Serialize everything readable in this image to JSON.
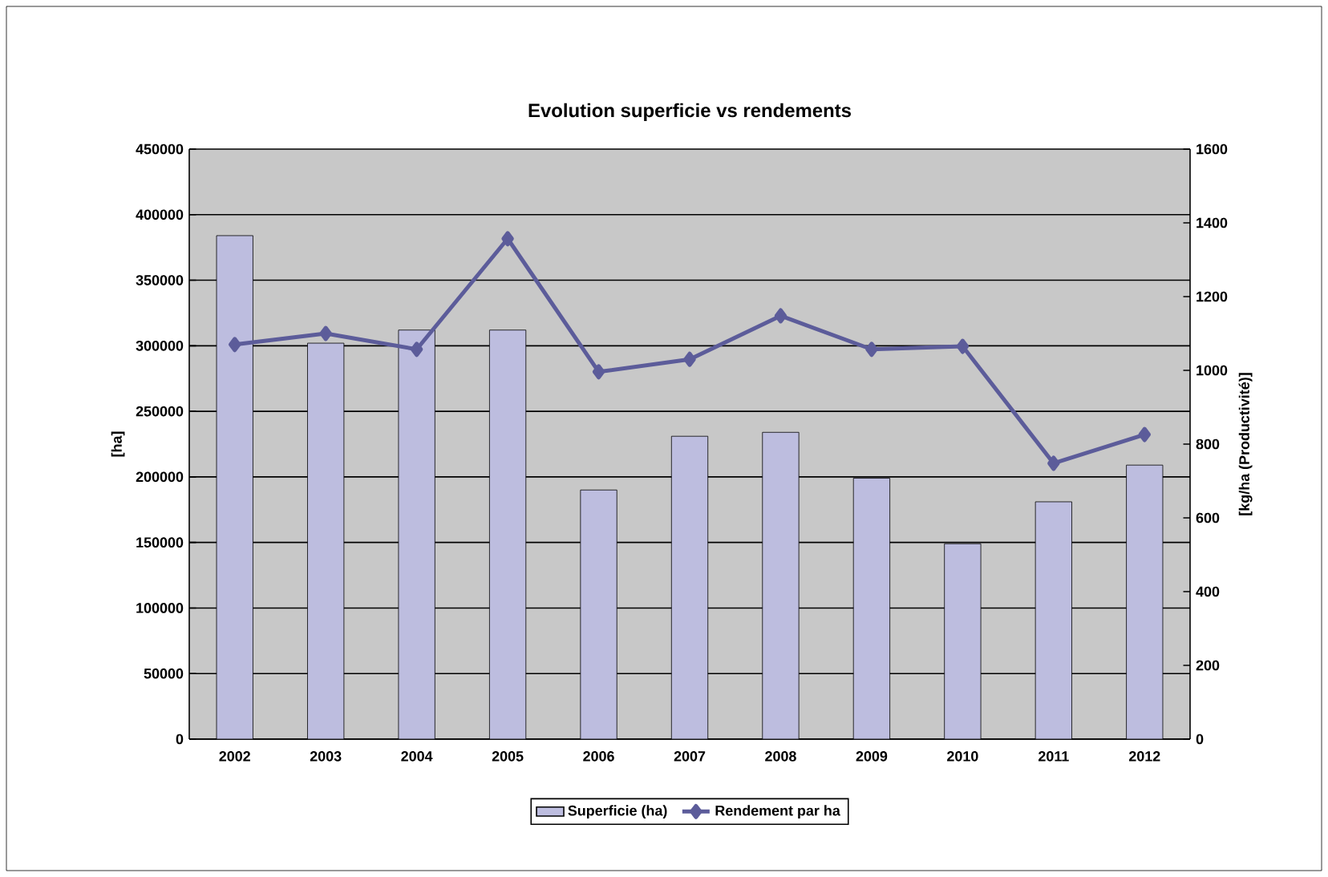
{
  "chart_data": {
    "type": "bar",
    "title": "Evolution superficie vs rendements",
    "ylabel": "[ha]",
    "y2label": "[kg/ha (Productivité)]",
    "categories": [
      "2002",
      "2003",
      "2004",
      "2005",
      "2006",
      "2007",
      "2008",
      "2009",
      "2010",
      "2011",
      "2012"
    ],
    "series": [
      {
        "name": "Superficie (ha)",
        "color": "#bdbddf",
        "values": [
          384000,
          302000,
          312000,
          312000,
          190000,
          231000,
          234000,
          199000,
          149000,
          181000,
          209000
        ]
      },
      {
        "name": "Rendement par ha",
        "type": "line",
        "axis": "y2",
        "color": "#5c5c9a",
        "marker": "diamond",
        "values": [
          1070,
          1100,
          1057,
          1357,
          996,
          1030,
          1148,
          1057,
          1065,
          748,
          826
        ]
      }
    ],
    "ylim": [
      0,
      450000
    ],
    "yticks": [
      0,
      50000,
      100000,
      150000,
      200000,
      250000,
      300000,
      350000,
      400000,
      450000
    ],
    "y2lim": [
      0,
      1600
    ],
    "y2ticks": [
      0,
      200,
      400,
      600,
      800,
      1000,
      1200,
      1400,
      1600
    ],
    "grid": "y",
    "legend": "bottom"
  }
}
